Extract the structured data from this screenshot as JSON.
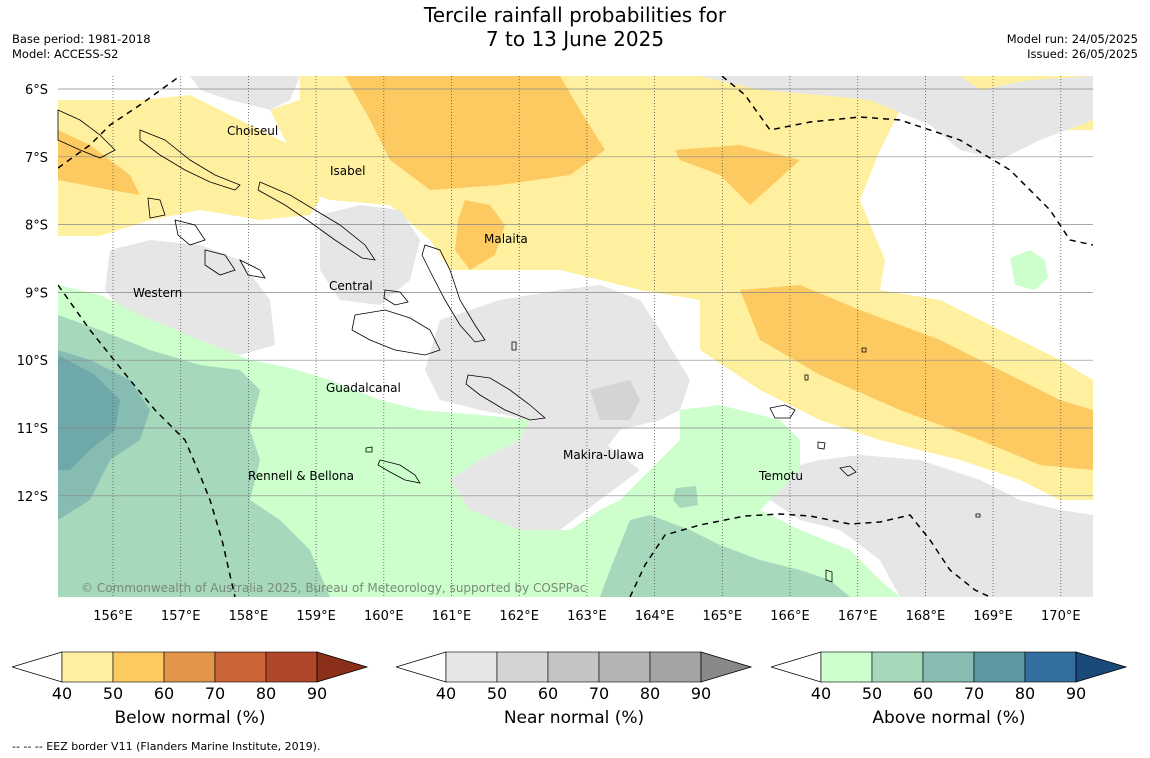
{
  "header": {
    "title_line1": "Tercile rainfall probabilities for",
    "title_line2": "7 to 13 June 2025",
    "base_period": "Base period: 1981-2018",
    "model": "Model: ACCESS-S2",
    "model_run": "Model run: 24/05/2025",
    "issued": "Issued: 26/05/2025"
  },
  "map": {
    "lat_labels": [
      "6°S",
      "7°S",
      "8°S",
      "9°S",
      "10°S",
      "11°S",
      "12°S"
    ],
    "lon_labels": [
      "156°E",
      "157°E",
      "158°E",
      "159°E",
      "160°E",
      "161°E",
      "162°E",
      "163°E",
      "164°E",
      "165°E",
      "166°E",
      "167°E",
      "168°E",
      "169°E",
      "170°E"
    ],
    "provinces": [
      "Choiseul",
      "Isabel",
      "Malaita",
      "Western",
      "Central",
      "Guadalcanal",
      "Makira-Ulawa",
      "Rennell & Bellona",
      "Temotu"
    ],
    "copyright": "© Commonwealth of Australia 2025, Bureau of Meteorology, supported by COSPPac"
  },
  "colorbars": [
    {
      "label": "Below normal (%)",
      "ticks": [
        "40",
        "50",
        "60",
        "70",
        "80",
        "90"
      ],
      "colors": [
        "#fff0a0",
        "#fdca62",
        "#e0954a",
        "#cc6537",
        "#b0472a",
        "#8c2f1a"
      ]
    },
    {
      "label": "Near normal (%)",
      "ticks": [
        "40",
        "50",
        "60",
        "70",
        "80",
        "90"
      ],
      "colors": [
        "#e6e6e6",
        "#d4d4d4",
        "#c4c4c4",
        "#b4b4b4",
        "#a4a4a4",
        "#888888"
      ]
    },
    {
      "label": "Above normal (%)",
      "ticks": [
        "40",
        "50",
        "60",
        "70",
        "80",
        "90"
      ],
      "colors": [
        "#ccffcc",
        "#a6d8bc",
        "#86bcb2",
        "#5c97a2",
        "#336e9e",
        "#1a4a7a"
      ]
    }
  ],
  "footnote": "--  --  -- EEZ border V11 (Flanders Marine Institute, 2019)."
}
